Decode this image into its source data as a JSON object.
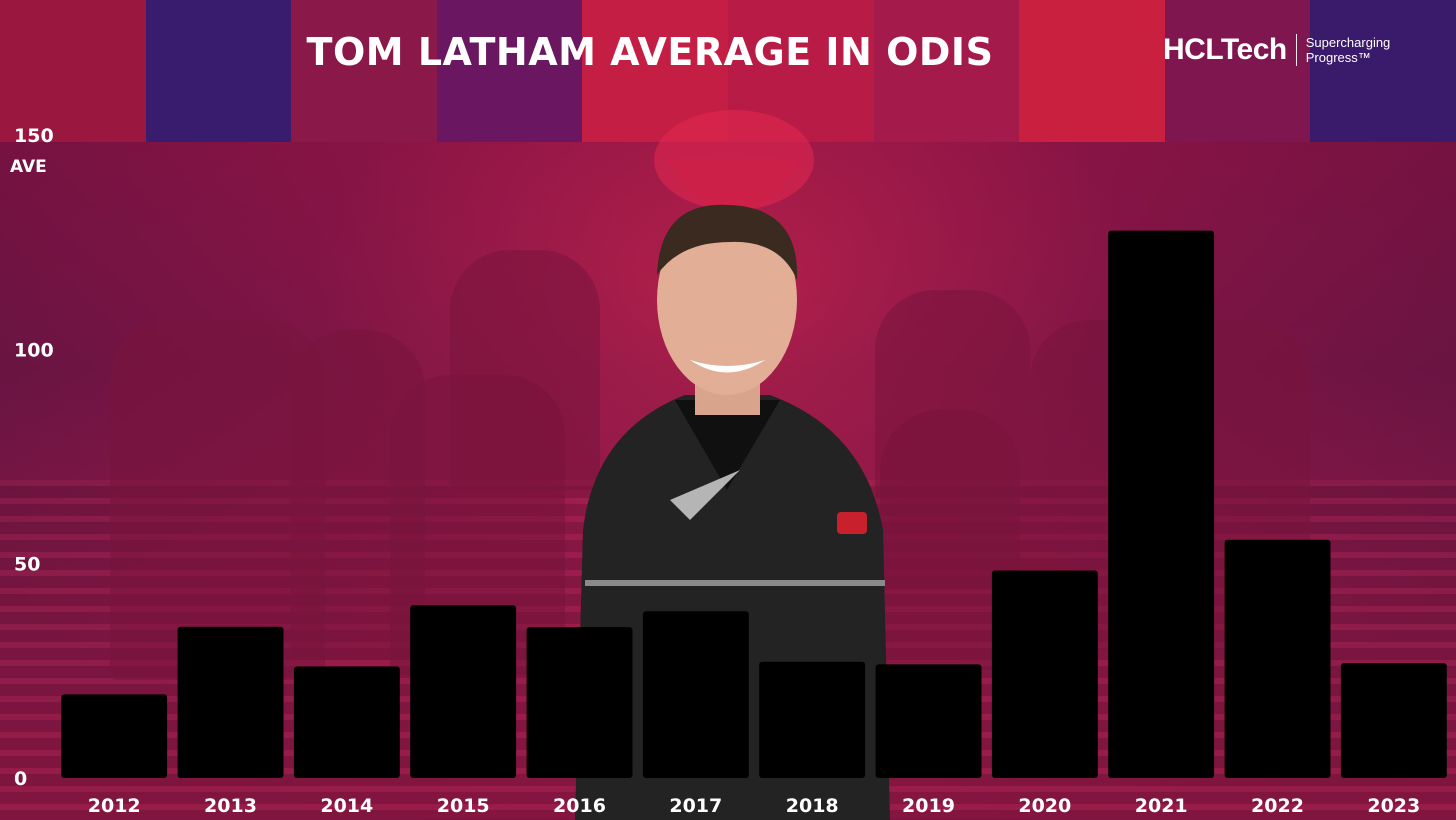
{
  "title": "TOM LATHAM AVERAGE IN ODIS",
  "brand": {
    "name": "HCLTech",
    "tagline_line1": "Supercharging",
    "tagline_line2": "Progress™"
  },
  "colors": {
    "bar": "#000000",
    "text": "#ffffff",
    "background": "#7a1446",
    "accent": "#e0284e"
  },
  "chart_data": {
    "type": "bar",
    "title": "TOM LATHAM AVERAGE IN ODIS",
    "xlabel": "",
    "ylabel": "AVE",
    "ylim": [
      0,
      150
    ],
    "yticks": [
      0,
      50,
      100,
      150
    ],
    "categories": [
      "2012",
      "2013",
      "2014",
      "2015",
      "2016",
      "2017",
      "2018",
      "2019",
      "2020",
      "2021",
      "2022",
      "2023"
    ],
    "values": [
      19.5,
      35.3,
      26,
      40.3,
      35.2,
      38.9,
      27.1,
      26.5,
      48.4,
      127.7,
      55.6,
      26.8
    ],
    "grid": false,
    "legend": "none"
  }
}
